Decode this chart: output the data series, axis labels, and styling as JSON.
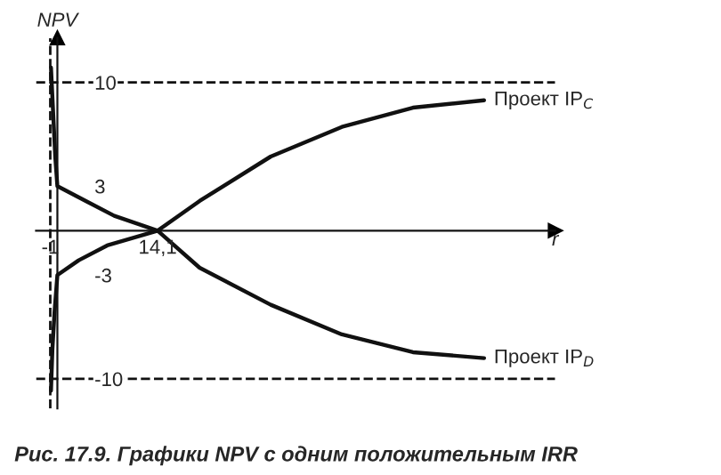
{
  "chart_data": {
    "type": "line",
    "title": "Рис. 17.9. Графики NPV с одним положительным IRR",
    "xlabel": "r",
    "ylabel": "NPV",
    "xlim": [
      -3,
      70
    ],
    "ylim": [
      -12,
      13
    ],
    "xticks": [
      -1,
      {
        "value": 14.1,
        "label": "14,1"
      }
    ],
    "yticks": [
      -10,
      -3,
      3,
      10
    ],
    "series": [
      {
        "name": "Проект IP$_{C}$",
        "color": "#111111",
        "x": [
          -0.9,
          -0.7,
          -0.4,
          0,
          3,
          7,
          14.1,
          20,
          30,
          40,
          50,
          60
        ],
        "values": [
          -10.8,
          -8,
          -5.5,
          -3,
          -2,
          -1,
          0,
          2,
          5,
          7,
          8.3,
          8.8
        ]
      },
      {
        "name": "Проект IP$_{D}$",
        "color": "#111111",
        "x": [
          -0.9,
          -0.6,
          -0.3,
          0,
          4,
          8,
          14.1,
          20,
          30,
          40,
          50,
          60
        ],
        "values": [
          11,
          8,
          5,
          3,
          2,
          1,
          0,
          -2.5,
          -5,
          -7,
          -8.2,
          -8.6
        ]
      }
    ],
    "ref_lines": [
      {
        "axis": "y",
        "value": 10,
        "color": "#111111",
        "line_style": "dashed"
      },
      {
        "axis": "y",
        "value": -10,
        "color": "#111111",
        "line_style": "dashed"
      },
      {
        "axis": "x",
        "value": -1,
        "color": "#111111",
        "line_style": "dashed"
      }
    ],
    "grid": false,
    "legend": false,
    "marker": "none",
    "line_style": "solid"
  }
}
